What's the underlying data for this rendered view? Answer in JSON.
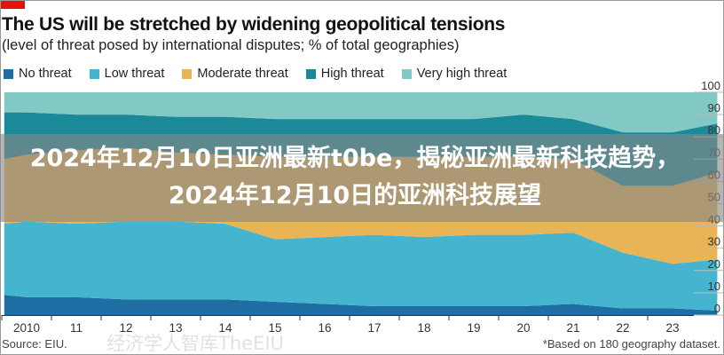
{
  "chart_data": {
    "type": "area",
    "stacked": true,
    "title": "The US will be stretched by widening geopolitical tensions",
    "subtitle": "(level of threat posed by international disputes; % of total geographies)",
    "x": [
      2009.55,
      2010,
      2011,
      2012,
      2013,
      2014,
      2015,
      2016,
      2017,
      2018,
      2019,
      2020,
      2021,
      2022,
      2023,
      2023.9
    ],
    "x_tick_values": [
      2010,
      2011,
      2012,
      2013,
      2014,
      2015,
      2016,
      2017,
      2018,
      2019,
      2020,
      2021,
      2022,
      2023
    ],
    "x_tick_labels": [
      "2010",
      "11",
      "12",
      "13",
      "14",
      "15",
      "16",
      "17",
      "18",
      "19",
      "20",
      "21",
      "22",
      "23"
    ],
    "y_ticks": [
      0,
      10,
      20,
      30,
      40,
      50,
      60,
      70,
      80,
      90,
      100
    ],
    "ylim": [
      0,
      100
    ],
    "legend_position": "top",
    "series": [
      {
        "name": "No threat",
        "color": "#1f6ea3",
        "values": [
          9,
          8,
          8,
          7,
          7,
          7,
          6,
          5,
          4,
          4,
          4,
          4,
          5,
          3,
          3,
          2
        ]
      },
      {
        "name": "Low threat",
        "color": "#45b5cf",
        "values": [
          32,
          34,
          33,
          35,
          35,
          34,
          28,
          30,
          32,
          31,
          32,
          32,
          32,
          25,
          20,
          23
        ]
      },
      {
        "name": "Moderate threat",
        "color": "#e9b455",
        "values": [
          29,
          30,
          33,
          33,
          31,
          31,
          37,
          36,
          35,
          36,
          35,
          35,
          33,
          30,
          35,
          39
        ]
      },
      {
        "name": "High threat",
        "color": "#1a8a99",
        "values": [
          21,
          19,
          16,
          15,
          16,
          17,
          17,
          17,
          17,
          17,
          17,
          19,
          18,
          24,
          24,
          22
        ]
      },
      {
        "name": "Very high threat",
        "color": "#82c8c4",
        "values": [
          9,
          9,
          10,
          10,
          11,
          11,
          12,
          12,
          12,
          12,
          12,
          10,
          12,
          18,
          18,
          14
        ]
      }
    ],
    "source": "Source: EIU.",
    "note": "*Based on 180 geography dataset."
  },
  "overlay": {
    "headline": "2024年12月10日亚洲最新t0be，揭秘亚洲最新科技趋势，2024年12月10日的亚洲科技展望"
  },
  "watermark": "经济学人智库TheEIU",
  "colors": {
    "brand_red": "#e3120b"
  }
}
